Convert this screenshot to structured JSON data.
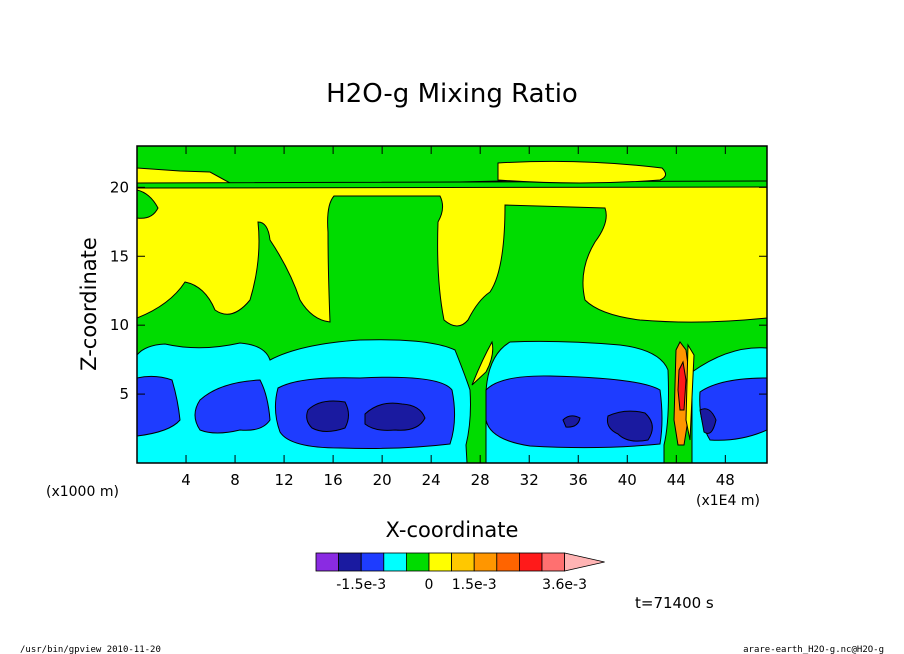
{
  "chart_data": {
    "type": "contour",
    "title": "H2O-g Mixing Ratio",
    "xlabel": "X-coordinate",
    "ylabel": "Z-coordinate",
    "x_ticks": [
      "4",
      "8",
      "12",
      "16",
      "20",
      "24",
      "28",
      "32",
      "36",
      "40",
      "44",
      "48"
    ],
    "x_tick_values": [
      4,
      8,
      12,
      16,
      20,
      24,
      28,
      32,
      36,
      40,
      44,
      48
    ],
    "y_ticks": [
      "5",
      "10",
      "15",
      "20"
    ],
    "y_tick_values": [
      5,
      10,
      15,
      20
    ],
    "xlim": [
      0,
      51.4
    ],
    "ylim": [
      0,
      23
    ],
    "x_unit_left": "(x1000 m)",
    "x_unit_right": "(x1E4 m)",
    "colorbar": {
      "colors": [
        "#8a2be2",
        "#1a1aa0",
        "#1e3cff",
        "#00ffff",
        "#00dc00",
        "#ffff00",
        "#ffc800",
        "#ff9600",
        "#ff6400",
        "#ff1a1a",
        "#ff7070",
        "#ffb4b4"
      ],
      "labels": [
        "-1.5e-3",
        "0",
        "1.5e-3",
        "3.6e-3"
      ]
    },
    "time_label": "t=71400 s"
  },
  "footer": {
    "left": "/usr/bin/gpview  2010-11-20",
    "right": "arare-earth_H2O-g.nc@H2O-g"
  }
}
